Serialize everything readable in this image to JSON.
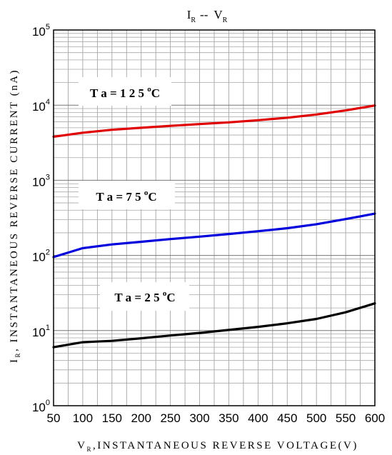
{
  "chart_data": {
    "type": "line",
    "title": {
      "main": "I",
      "sub": "R",
      "sep": "--",
      "main2": "V",
      "sub2": "R"
    },
    "xlabel": {
      "main": "V",
      "sub": "R",
      "rest": ",INSTANTANEOUS REVERSE VOLTAGE(V)"
    },
    "ylabel": {
      "main": "I",
      "sub": "R",
      "rest": ", INSTANTANEOUS REVERSE CURRENT (nA)"
    },
    "xlim": [
      50,
      600
    ],
    "ylim": [
      1,
      100000
    ],
    "yscale": "log",
    "grid": true,
    "x_ticks": [
      "50",
      "100",
      "150",
      "200",
      "250",
      "300",
      "350",
      "400",
      "450",
      "500",
      "550",
      "600"
    ],
    "y_ticks": [
      {
        "base": "10",
        "exp": "0"
      },
      {
        "base": "10",
        "exp": "1"
      },
      {
        "base": "10",
        "exp": "2"
      },
      {
        "base": "10",
        "exp": "3"
      },
      {
        "base": "10",
        "exp": "4"
      },
      {
        "base": "10",
        "exp": "5"
      }
    ],
    "series": [
      {
        "name": "Ta = 125 °C",
        "label_parts": {
          "pre": "T a = 1 2 5 ",
          "sup": "o",
          "post": "C"
        },
        "color": "#e00000",
        "x": [
          50,
          100,
          150,
          200,
          250,
          300,
          350,
          400,
          450,
          500,
          550,
          600
        ],
        "values": [
          3800,
          4300,
          4700,
          5000,
          5300,
          5600,
          5900,
          6300,
          6800,
          7500,
          8500,
          9900
        ]
      },
      {
        "name": "Ta = 75 °C",
        "label_parts": {
          "pre": "T a = 7 5 ",
          "sup": "o",
          "post": "C"
        },
        "color": "#0000dd",
        "x": [
          50,
          100,
          150,
          200,
          250,
          300,
          350,
          400,
          450,
          500,
          550,
          600
        ],
        "values": [
          95,
          125,
          140,
          152,
          165,
          178,
          193,
          210,
          230,
          260,
          305,
          360
        ]
      },
      {
        "name": "Ta = 25 °C",
        "label_parts": {
          "pre": "T a = 2 5 ",
          "sup": "o",
          "post": "C"
        },
        "color": "#000000",
        "x": [
          50,
          100,
          150,
          200,
          250,
          300,
          350,
          400,
          450,
          500,
          550,
          600
        ],
        "values": [
          6,
          7,
          7.3,
          7.9,
          8.6,
          9.3,
          10.2,
          11.2,
          12.5,
          14.3,
          17.5,
          23
        ]
      }
    ]
  }
}
